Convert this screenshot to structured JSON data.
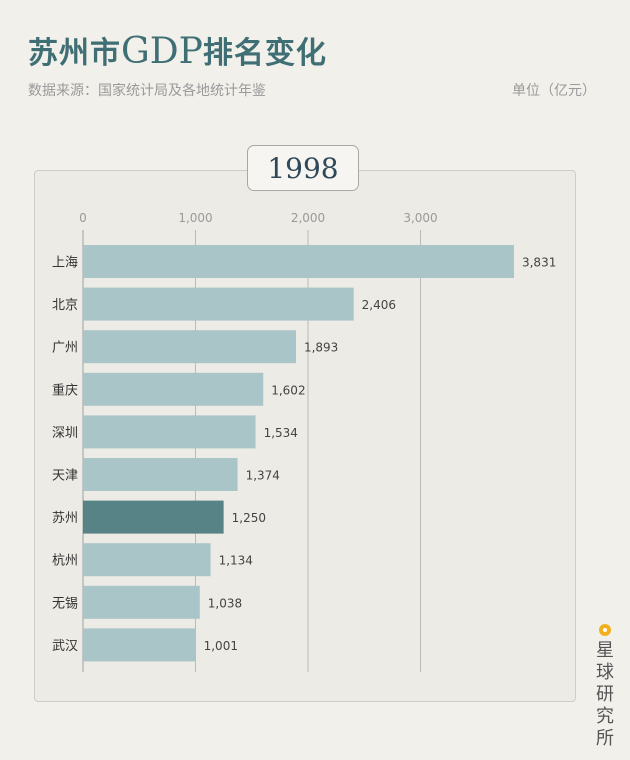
{
  "header": {
    "title_cn": "苏州市",
    "title_gdp": "GDP",
    "title_rest": "排名变化",
    "subtitle": "数据来源：国家统计局及各地统计年鉴",
    "unit": "单位（亿元）"
  },
  "year": "1998",
  "brand": {
    "name": "星球研究所",
    "dot_color": "#f2b01e"
  },
  "chart_data": {
    "type": "bar",
    "orientation": "horizontal",
    "categories": [
      "上海",
      "北京",
      "广州",
      "重庆",
      "深圳",
      "天津",
      "苏州",
      "杭州",
      "无锡",
      "武汉"
    ],
    "values": [
      3831,
      2406,
      1893,
      1602,
      1534,
      1374,
      1250,
      1134,
      1038,
      1001
    ],
    "value_labels": [
      "3,831",
      "2,406",
      "1,893",
      "1,602",
      "1,534",
      "1,374",
      "1,250",
      "1,134",
      "1,038",
      "1,001"
    ],
    "highlight": "苏州",
    "xlim": [
      0,
      4000
    ],
    "xticks": [
      0,
      1000,
      2000,
      3000
    ],
    "xtick_labels": [
      "0",
      "1,000",
      "2,000",
      "3,000"
    ],
    "grid": true,
    "bar_color": "#a9c5c8",
    "highlight_color": "#578387"
  }
}
